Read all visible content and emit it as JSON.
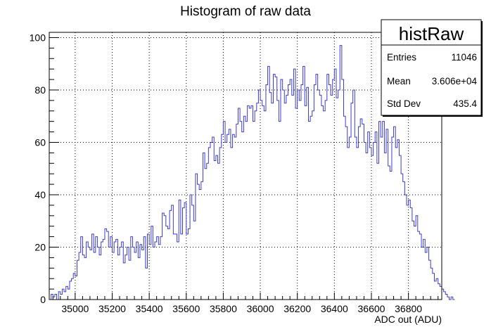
{
  "chart_data": {
    "type": "histogram",
    "title": "Histogram of raw data",
    "xlabel": "ADC out (ADU)",
    "ylabel": "",
    "xlim": [
      34860,
      36980
    ],
    "ylim": [
      0,
      102
    ],
    "x_ticks": [
      35000,
      35200,
      35400,
      35600,
      35800,
      36000,
      36200,
      36400,
      36600,
      36800
    ],
    "y_ticks": [
      0,
      20,
      40,
      60,
      80,
      100
    ],
    "grid": true,
    "line_color": "#3b3bd6",
    "bin_width": 10,
    "bin_start": 34860,
    "values": [
      0,
      2,
      1,
      2,
      0,
      3,
      2,
      4,
      3,
      5,
      4,
      7,
      8,
      10,
      9,
      15,
      18,
      24,
      17,
      16,
      22,
      20,
      19,
      25,
      18,
      24,
      20,
      17,
      22,
      23,
      27,
      26,
      20,
      24,
      18,
      22,
      23,
      17,
      20,
      22,
      14,
      17,
      20,
      15,
      24,
      20,
      18,
      22,
      16,
      21,
      19,
      24,
      12,
      25,
      21,
      28,
      20,
      22,
      24,
      21,
      24,
      33,
      32,
      28,
      27,
      34,
      36,
      25,
      25,
      22,
      38,
      25,
      35,
      37,
      25,
      27,
      40,
      36,
      30,
      48,
      44,
      42,
      45,
      56,
      50,
      52,
      58,
      60,
      62,
      53,
      55,
      52,
      58,
      63,
      68,
      60,
      63,
      65,
      58,
      63,
      62,
      67,
      73,
      68,
      64,
      70,
      68,
      74,
      73,
      74,
      68,
      72,
      75,
      80,
      76,
      74,
      72,
      82,
      89,
      79,
      75,
      86,
      85,
      76,
      68,
      84,
      80,
      75,
      78,
      82,
      84,
      78,
      88,
      73,
      80,
      76,
      82,
      89,
      74,
      81,
      68,
      70,
      72,
      82,
      86,
      80,
      78,
      74,
      72,
      76,
      86,
      82,
      78,
      84,
      88,
      77,
      80,
      97,
      84,
      70,
      66,
      58,
      62,
      75,
      80,
      62,
      58,
      66,
      69,
      67,
      60,
      56,
      64,
      58,
      55,
      60,
      64,
      52,
      68,
      62,
      68,
      56,
      65,
      51,
      49,
      62,
      66,
      58,
      61,
      55,
      48,
      45,
      40,
      36,
      38,
      35,
      30,
      28,
      32,
      26,
      25,
      20,
      23,
      18,
      20,
      15,
      12,
      10,
      7,
      8,
      6,
      5,
      4,
      3,
      2,
      1,
      0,
      1,
      0
    ]
  },
  "stats_box": {
    "title": "histRaw",
    "rows": [
      {
        "label": "Entries",
        "value": "11046"
      },
      {
        "label": "Mean",
        "value": "3.606e+04"
      },
      {
        "label": "Std Dev",
        "value": "435.4"
      }
    ]
  }
}
